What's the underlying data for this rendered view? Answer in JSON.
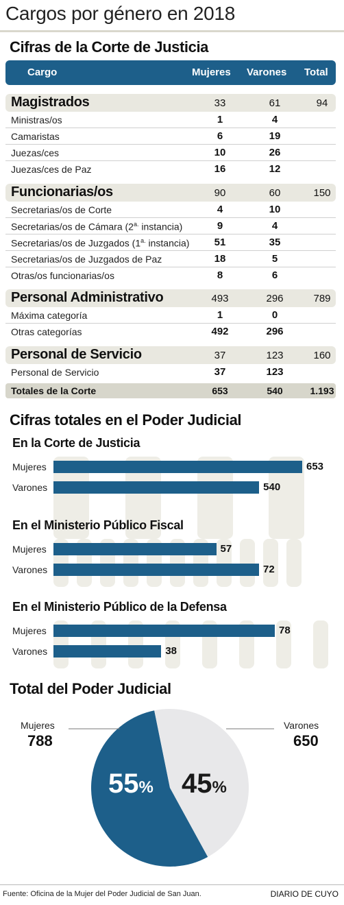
{
  "title": "Cargos por género en 2018",
  "table": {
    "section_title": "Cifras de la Corte de Justicia",
    "headers": {
      "cargo": "Cargo",
      "mujeres": "Mujeres",
      "varones": "Varones",
      "total": "Total"
    },
    "groups": [
      {
        "name": "Magistrados",
        "mujeres": "33",
        "varones": "61",
        "total": "94",
        "rows": [
          {
            "name": "Ministras/os",
            "mujeres": "1",
            "varones": "4"
          },
          {
            "name": "Camaristas",
            "mujeres": "6",
            "varones": "19"
          },
          {
            "name": "Juezas/ces",
            "mujeres": "10",
            "varones": "26"
          },
          {
            "name": "Juezas/ces de Paz",
            "mujeres": "16",
            "varones": "12"
          }
        ]
      },
      {
        "name": "Funcionarias/os",
        "mujeres": "90",
        "varones": "60",
        "total": "150",
        "rows": [
          {
            "name": "Secretarias/os de Corte",
            "mujeres": "4",
            "varones": "10"
          },
          {
            "name_main": "Secretarias/os de Cámara (2",
            "name_sup": "a.",
            "name_tail": " instancia)",
            "mujeres": "9",
            "varones": "4"
          },
          {
            "name_main": "Secretarias/os de Juzgados (1",
            "name_sup": "a.",
            "name_tail": " instancia)",
            "mujeres": "51",
            "varones": "35"
          },
          {
            "name": "Secretarias/os de Juzgados de Paz",
            "mujeres": "18",
            "varones": "5"
          },
          {
            "name": "Otras/os funcionarias/os",
            "mujeres": "8",
            "varones": "6"
          }
        ]
      },
      {
        "name": "Personal Administrativo",
        "mujeres": "493",
        "varones": "296",
        "total": "789",
        "rows": [
          {
            "name": "Máxima categoría",
            "mujeres": "1",
            "varones": "0"
          },
          {
            "name": "Otras categorías",
            "mujeres": "492",
            "varones": "296"
          }
        ]
      },
      {
        "name": "Personal de Servicio",
        "mujeres": "37",
        "varones": "123",
        "total": "160",
        "rows": [
          {
            "name": "Personal de Servicio",
            "mujeres": "37",
            "varones": "123"
          }
        ]
      }
    ],
    "totals": {
      "name": "Totales de la Corte",
      "mujeres": "653",
      "varones": "540",
      "total": "1.193"
    }
  },
  "bars_section_title": "Cifras totales en el Poder Judicial",
  "pie_section_title": "Total del Poder Judicial",
  "colors": {
    "mujeres": "#1d5f8a",
    "varones": "#e8e8ea",
    "header": "#1d5f8a"
  },
  "chart_data": [
    {
      "type": "bar",
      "orientation": "horizontal",
      "title": "En la Corte de Justicia",
      "categories": [
        "Mujeres",
        "Varones"
      ],
      "values": [
        653,
        540
      ],
      "xlim": [
        0,
        653
      ]
    },
    {
      "type": "bar",
      "orientation": "horizontal",
      "title": "En el Ministerio Público Fiscal",
      "categories": [
        "Mujeres",
        "Varones"
      ],
      "values": [
        57,
        72
      ],
      "xlim": [
        0,
        93
      ]
    },
    {
      "type": "bar",
      "orientation": "horizontal",
      "title": "En el Ministerio Público de la Defensa",
      "categories": [
        "Mujeres",
        "Varones"
      ],
      "values": [
        78,
        38
      ],
      "xlim": [
        0,
        85
      ]
    },
    {
      "type": "pie",
      "title": "Total del Poder Judicial",
      "labels": [
        "Mujeres",
        "Varones"
      ],
      "values": [
        788,
        650
      ],
      "percent_labels": [
        "55",
        "45"
      ],
      "percent_sign": "%"
    }
  ],
  "footer": {
    "source": "Fuente: Oficina de la Mujer del Poder Judicial de San Juan.",
    "brand": "DIARIO DE CUYO"
  }
}
